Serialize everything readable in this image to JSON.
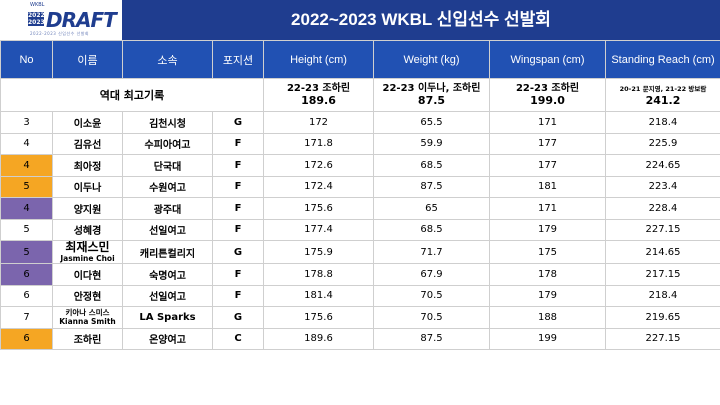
{
  "header": {
    "logo_tag": "WKBL",
    "logo_year_top": "2022",
    "logo_year_bottom": "2023",
    "logo_text": "DRAFT",
    "logo_subtext": "2022-2023 신입선수 선발회",
    "title": "2022~2023 WKBL 신입선수 선발회"
  },
  "columns": [
    "No",
    "이름",
    "소속",
    "포지션",
    "Height (cm)",
    "Weight (kg)",
    "Wingspan (cm)",
    "Standing Reach (cm)"
  ],
  "record": {
    "label": "역대 최고기록",
    "height": {
      "top": "22-23 조하린",
      "bottom": "189.6"
    },
    "weight": {
      "top": "22-23 이두나, 조하린",
      "bottom": "87.5"
    },
    "wingspan": {
      "top": "22-23 조하린",
      "bottom": "199.0"
    },
    "reach": {
      "top": "20-21 문지영, 21-22 방보람",
      "bottom": "241.2"
    }
  },
  "players": [
    {
      "no": "3",
      "no_color": "none",
      "name": "이소윤",
      "team": "김천시청",
      "pos": "G",
      "height": "172",
      "weight": "65.5",
      "wingspan": "171",
      "reach": "218.4"
    },
    {
      "no": "4",
      "no_color": "none",
      "name": "김유선",
      "team": "수피아여고",
      "pos": "F",
      "height": "171.8",
      "weight": "59.9",
      "wingspan": "177",
      "reach": "225.9"
    },
    {
      "no": "4",
      "no_color": "orange",
      "name": "최아정",
      "team": "단국대",
      "pos": "F",
      "height": "172.6",
      "weight": "68.5",
      "wingspan": "177",
      "reach": "224.65"
    },
    {
      "no": "5",
      "no_color": "orange",
      "name": "이두나",
      "team": "수원여고",
      "pos": "F",
      "height": "172.4",
      "weight": "87.5",
      "wingspan": "181",
      "reach": "223.4"
    },
    {
      "no": "4",
      "no_color": "purple",
      "name": "양지원",
      "team": "광주대",
      "pos": "F",
      "height": "175.6",
      "weight": "65",
      "wingspan": "171",
      "reach": "228.4"
    },
    {
      "no": "5",
      "no_color": "none",
      "name": "성혜경",
      "team": "선일여고",
      "pos": "F",
      "height": "177.4",
      "weight": "68.5",
      "wingspan": "179",
      "reach": "227.15"
    },
    {
      "no": "5",
      "no_color": "purple",
      "name": "최재스민",
      "name_sub": "Jasmine Choi",
      "team": "캐리튼컬리지",
      "pos": "G",
      "height": "175.9",
      "weight": "71.7",
      "wingspan": "175",
      "reach": "214.65"
    },
    {
      "no": "6",
      "no_color": "purple",
      "name": "이다현",
      "team": "숙명여고",
      "pos": "F",
      "height": "178.8",
      "weight": "67.9",
      "wingspan": "178",
      "reach": "217.15"
    },
    {
      "no": "6",
      "no_color": "none",
      "name": "안정현",
      "team": "선일여고",
      "pos": "F",
      "height": "181.4",
      "weight": "70.5",
      "wingspan": "179",
      "reach": "218.4"
    },
    {
      "no": "7",
      "no_color": "none",
      "name_top": "키아나 스미스",
      "name_bottom": "Kianna Smith",
      "team": "LA Sparks",
      "pos": "G",
      "height": "175.6",
      "weight": "70.5",
      "wingspan": "188",
      "reach": "219.65"
    },
    {
      "no": "6",
      "no_color": "orange",
      "name": "조하린",
      "team": "온양여고",
      "pos": "C",
      "height": "189.6",
      "weight": "87.5",
      "wingspan": "199",
      "reach": "227.15"
    }
  ]
}
